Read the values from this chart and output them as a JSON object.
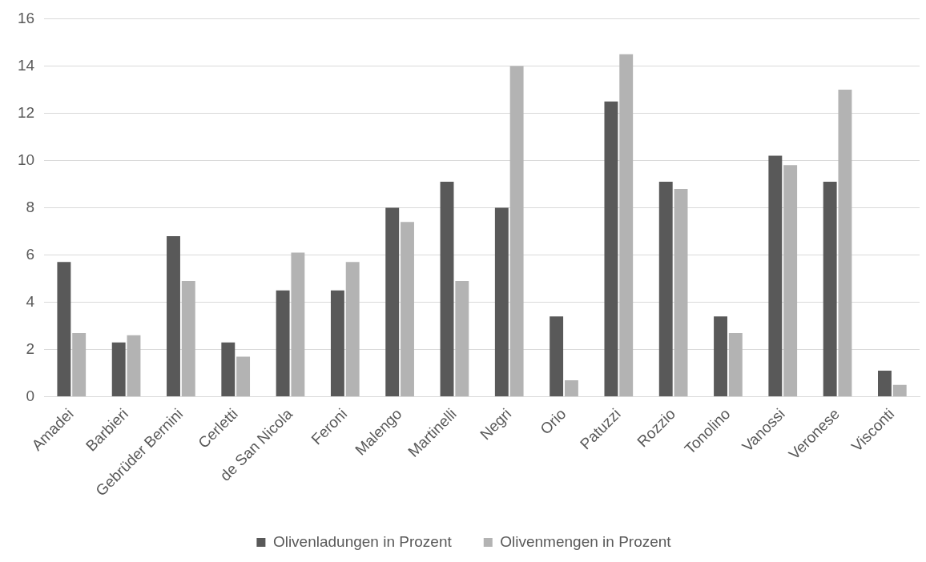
{
  "chart_data": {
    "type": "bar",
    "categories": [
      "Amadei",
      "Barbieri",
      "Gebrüder Bernini",
      "Cerletti",
      "de San Nicola",
      "Feroni",
      "Malengo",
      "Martinelli",
      "Negri",
      "Orio",
      "Patuzzi",
      "Rozzio",
      "Tonolino",
      "Vanossi",
      "Veronese",
      "Visconti"
    ],
    "series": [
      {
        "name": "Olivenladungen in Prozent",
        "color": "#595959",
        "values": [
          5.7,
          2.3,
          6.8,
          2.3,
          4.5,
          4.5,
          8.0,
          9.1,
          8.0,
          3.4,
          12.5,
          9.1,
          3.4,
          10.2,
          9.1,
          1.1
        ]
      },
      {
        "name": "Olivenmengen in Prozent",
        "color": "#b3b3b3",
        "values": [
          2.7,
          2.6,
          4.9,
          1.7,
          6.1,
          5.7,
          7.4,
          4.9,
          14.0,
          0.7,
          14.5,
          8.8,
          2.7,
          9.8,
          13.0,
          0.5
        ]
      }
    ],
    "ylim": [
      0,
      16
    ],
    "yticks": [
      0,
      2,
      4,
      6,
      8,
      10,
      12,
      14,
      16
    ],
    "grid": "y",
    "legend": "bottom"
  }
}
